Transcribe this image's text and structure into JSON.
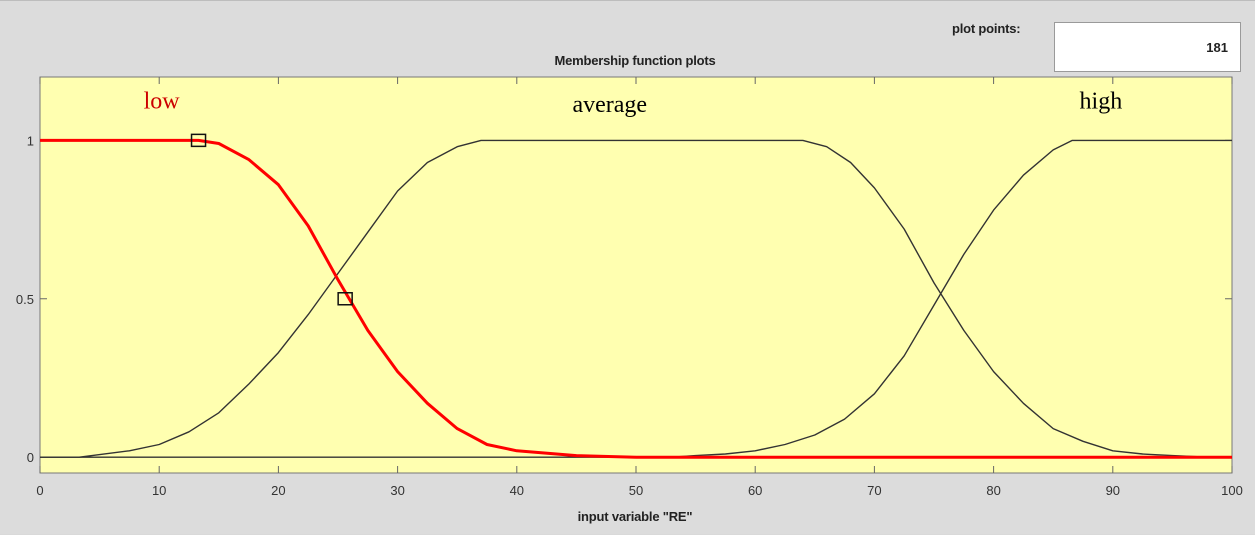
{
  "plot_points": {
    "label": "plot points:",
    "value": "181"
  },
  "chart_data": {
    "type": "line",
    "title": "Membership function plots",
    "xlabel": "input variable \"RE\"",
    "ylabel": "",
    "xlim": [
      0,
      100
    ],
    "ylim": [
      -0.05,
      1.2
    ],
    "x_ticks": [
      0,
      10,
      20,
      30,
      40,
      50,
      60,
      70,
      80,
      90,
      100
    ],
    "y_ticks": [
      0,
      0.5,
      1
    ],
    "y_tick_labels": [
      "0",
      "0.5",
      "1"
    ],
    "grid": false,
    "background": "#ffffb0",
    "series": [
      {
        "name": "low",
        "selected": true,
        "color": "#ff0000",
        "function": "z-shaped",
        "params": [
          13.3,
          37.8
        ],
        "x": [
          0,
          13.3,
          15,
          17.5,
          20,
          22.5,
          25,
          27.5,
          30,
          32.5,
          35,
          37.5,
          40,
          45,
          50,
          100
        ],
        "y": [
          1,
          1,
          0.99,
          0.94,
          0.86,
          0.73,
          0.56,
          0.4,
          0.27,
          0.17,
          0.09,
          0.04,
          0.02,
          0.005,
          0,
          0
        ]
      },
      {
        "name": "average",
        "selected": false,
        "color": "#333333",
        "function": "pi-shaped",
        "params": [
          3.3,
          37,
          64,
          98
        ],
        "x": [
          0,
          3.3,
          7.5,
          10,
          12.5,
          15,
          17.5,
          20,
          22.5,
          25,
          27.5,
          30,
          32.5,
          35,
          37,
          64,
          66,
          68,
          70,
          72.5,
          75,
          77.5,
          80,
          82.5,
          85,
          87.5,
          90,
          92.5,
          95,
          98,
          100
        ],
        "y": [
          0,
          0,
          0.02,
          0.04,
          0.08,
          0.14,
          0.23,
          0.33,
          0.45,
          0.58,
          0.71,
          0.84,
          0.93,
          0.98,
          1,
          1,
          0.98,
          0.93,
          0.85,
          0.72,
          0.55,
          0.4,
          0.27,
          0.17,
          0.09,
          0.05,
          0.02,
          0.01,
          0.005,
          0,
          0
        ]
      },
      {
        "name": "high",
        "selected": false,
        "color": "#333333",
        "function": "s-shaped",
        "params": [
          53,
          86.6
        ],
        "x": [
          0,
          53,
          55,
          57.5,
          60,
          62.5,
          65,
          67.5,
          70,
          72.5,
          75,
          77.5,
          80,
          82.5,
          85,
          86.6,
          100
        ],
        "y": [
          0,
          0,
          0.005,
          0.01,
          0.02,
          0.04,
          0.07,
          0.12,
          0.2,
          0.32,
          0.48,
          0.64,
          0.78,
          0.89,
          0.97,
          1,
          1
        ]
      }
    ],
    "markers": [
      {
        "series": "low",
        "x": 13.3,
        "y": 1
      },
      {
        "series": "low",
        "x": 25.6,
        "y": 0.5
      }
    ],
    "annotations": [
      {
        "text": "low",
        "x": 10.2,
        "y": 1.1,
        "color": "#cc0000"
      },
      {
        "text": "average",
        "x": 47.8,
        "y": 1.09,
        "color": "#000000"
      },
      {
        "text": "high",
        "x": 89,
        "y": 1.1,
        "color": "#000000"
      }
    ]
  }
}
